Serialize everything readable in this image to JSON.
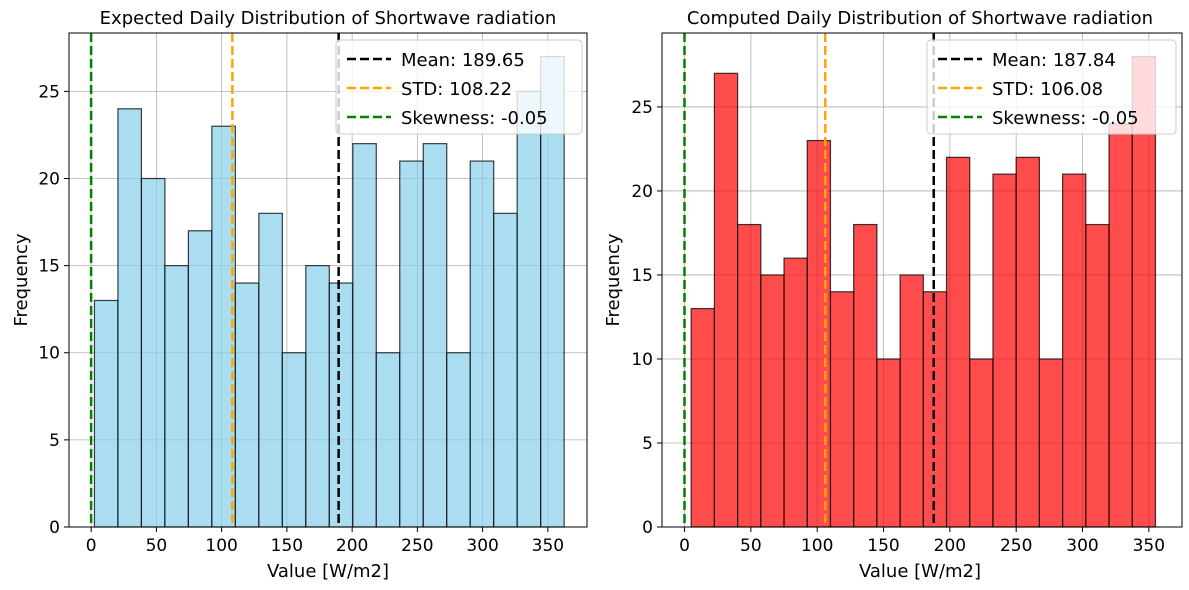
{
  "chart_data": [
    {
      "type": "bar",
      "title": "Expected Daily Distribution of Shortwave radiation",
      "xlabel": "Value [W/m2]",
      "ylabel": "Frequency",
      "xlim": [
        -17,
        380
      ],
      "ylim": [
        0,
        28.35
      ],
      "xticks": [
        0,
        50,
        100,
        150,
        200,
        250,
        300,
        350
      ],
      "yticks": [
        0,
        5,
        10,
        15,
        20,
        25
      ],
      "bin_edges": [
        2.5,
        20.5,
        38.5,
        56.5,
        74.5,
        92.5,
        110.5,
        128.5,
        146.5,
        164.5,
        182.5,
        200.5,
        218.5,
        236.5,
        254.5,
        272.5,
        290.5,
        308.5,
        326.5,
        344.5,
        362.5
      ],
      "values": [
        13,
        24,
        20,
        15,
        17,
        23,
        14,
        18,
        10,
        15,
        14,
        22,
        10,
        21,
        22,
        10,
        21,
        18,
        25,
        27
      ],
      "bar_color": "#87CEEB",
      "edge_color": "#000000",
      "grid": true,
      "legend_position": "top-right",
      "vlines": [
        {
          "label": "Mean: 189.65",
          "x": 189.65,
          "color": "#000000"
        },
        {
          "label": "STD: 108.22",
          "x": 108.22,
          "color": "#FFA500"
        },
        {
          "label": "Skewness: -0.05",
          "x": -0.05,
          "color": "#008000"
        }
      ]
    },
    {
      "type": "bar",
      "title": "Computed Daily Distribution of Shortwave radiation",
      "xlabel": "Value [W/m2]",
      "ylabel": "Frequency",
      "xlim": [
        -17,
        375
      ],
      "ylim": [
        0,
        29.4
      ],
      "xticks": [
        0,
        50,
        100,
        150,
        200,
        250,
        300,
        350
      ],
      "yticks": [
        0,
        5,
        10,
        15,
        20,
        25
      ],
      "bin_edges": [
        5,
        22.5,
        40,
        57.5,
        75,
        92.5,
        110,
        127.5,
        145,
        162.5,
        180,
        197.5,
        215,
        232.5,
        250,
        267.5,
        285,
        302.5,
        320,
        337.5,
        355
      ],
      "values": [
        13,
        27,
        18,
        15,
        16,
        23,
        14,
        18,
        10,
        15,
        14,
        22,
        10,
        21,
        22,
        10,
        21,
        18,
        24,
        28
      ],
      "bar_color": "#FF0000",
      "edge_color": "#000000",
      "grid": true,
      "legend_position": "top-right",
      "vlines": [
        {
          "label": "Mean: 187.84",
          "x": 187.84,
          "color": "#000000"
        },
        {
          "label": "STD: 106.08",
          "x": 106.08,
          "color": "#FFA500"
        },
        {
          "label": "Skewness: -0.05",
          "x": -0.05,
          "color": "#008000"
        }
      ]
    }
  ]
}
